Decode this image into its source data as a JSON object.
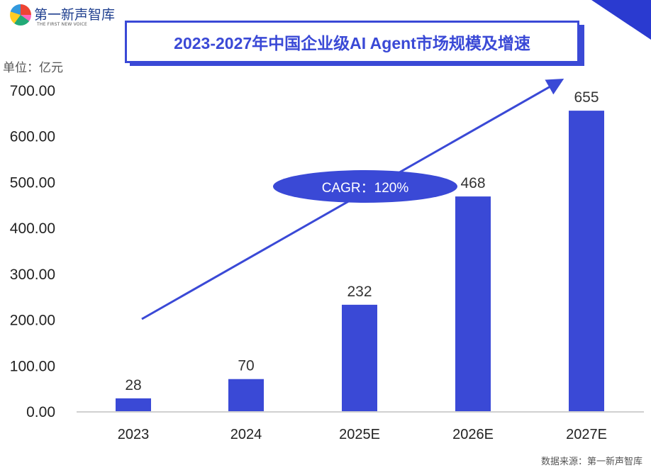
{
  "logo": {
    "name": "第一新声智库",
    "tagline": "THE FIRST NEW VOICE"
  },
  "title": "2023-2027年中国企业级AI Agent市场规模及增速",
  "unit_label": "单位：亿元",
  "source": "数据来源：第一新声智库",
  "colors": {
    "bar": "#3a49d6",
    "accent": "#3a49d6",
    "axis_text": "#222222"
  },
  "chart_data": {
    "type": "bar",
    "title": "2023-2027年中国企业级AI Agent市场规模及增速",
    "ylabel": "单位：亿元",
    "categories": [
      "2023",
      "2024",
      "2025E",
      "2026E",
      "2027E"
    ],
    "values": [
      28,
      70,
      232,
      468,
      655
    ],
    "data_labels": [
      "28",
      "70",
      "232",
      "468",
      "655"
    ],
    "ylim": [
      0,
      700
    ],
    "yticks": [
      "0.00",
      "100.00",
      "200.00",
      "300.00",
      "400.00",
      "500.00",
      "600.00",
      "700.00"
    ],
    "grid": false,
    "annotation": "CAGR：120%",
    "trend_arrow": true
  }
}
